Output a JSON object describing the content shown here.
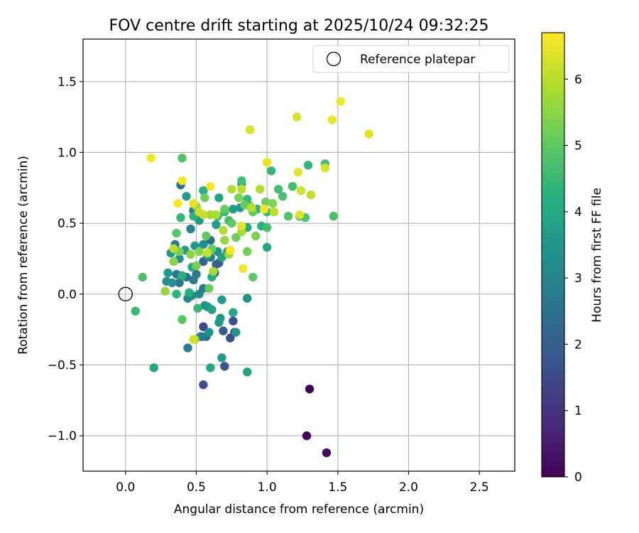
{
  "chart_data": {
    "type": "scatter",
    "title": "FOV centre drift starting at 2025/10/24 09:32:25",
    "xlabel": "Angular distance from reference (arcmin)",
    "ylabel": "Rotation from reference (arcmin)",
    "xlim": [
      -0.3,
      2.75
    ],
    "ylim": [
      -1.25,
      1.8
    ],
    "xticks": [
      0.0,
      0.5,
      1.0,
      1.5,
      2.0,
      2.5
    ],
    "xtick_labels": [
      "0.0",
      "0.5",
      "1.0",
      "1.5",
      "2.0",
      "2.5"
    ],
    "yticks": [
      -1.0,
      -0.5,
      0.0,
      0.5,
      1.0,
      1.5
    ],
    "ytick_labels": [
      "−1.0",
      "−0.5",
      "0.0",
      "0.5",
      "1.0",
      "1.5"
    ],
    "grid": true,
    "legend": {
      "position": "top-right",
      "entries": [
        "Reference platepar"
      ]
    },
    "colorbar": {
      "label": "Hours from first FF file",
      "colormap": "viridis",
      "range": [
        0,
        6.7
      ],
      "ticks": [
        0,
        1,
        2,
        3,
        4,
        5,
        6
      ],
      "tick_labels": [
        "0",
        "1",
        "2",
        "3",
        "4",
        "5",
        "6"
      ]
    },
    "reference_point": {
      "x": 0.0,
      "y": 0.0,
      "label": "Reference platepar"
    },
    "points": [
      {
        "x": 1.28,
        "y": -1.0,
        "h": 0.1
      },
      {
        "x": 1.3,
        "y": -0.67,
        "h": 0.1
      },
      {
        "x": 1.42,
        "y": -1.12,
        "h": 0.15
      },
      {
        "x": 0.55,
        "y": -0.64,
        "h": 1.6
      },
      {
        "x": 0.7,
        "y": -0.51,
        "h": 1.8
      },
      {
        "x": 0.74,
        "y": -0.31,
        "h": 1.6
      },
      {
        "x": 0.77,
        "y": -0.27,
        "h": 1.5
      },
      {
        "x": 0.76,
        "y": -0.19,
        "h": 1.7
      },
      {
        "x": 0.55,
        "y": -0.23,
        "h": 1.5
      },
      {
        "x": 0.57,
        "y": -0.3,
        "h": 2.2
      },
      {
        "x": 0.54,
        "y": -0.3,
        "h": 2.6
      },
      {
        "x": 0.69,
        "y": -0.26,
        "h": 1.9
      },
      {
        "x": 0.6,
        "y": 0.38,
        "h": 2.4
      },
      {
        "x": 0.63,
        "y": 0.15,
        "h": 2.3
      },
      {
        "x": 0.64,
        "y": 0.21,
        "h": 2.2
      },
      {
        "x": 0.66,
        "y": 0.22,
        "h": 2.1
      },
      {
        "x": 0.6,
        "y": 0.26,
        "h": 2.4
      },
      {
        "x": 0.55,
        "y": 0.23,
        "h": 2.2
      },
      {
        "x": 0.5,
        "y": 0.14,
        "h": 2.6
      },
      {
        "x": 0.48,
        "y": 0.1,
        "h": 2.8
      },
      {
        "x": 0.43,
        "y": 0.12,
        "h": 2.5
      },
      {
        "x": 0.36,
        "y": 0.14,
        "h": 2.7
      },
      {
        "x": 0.38,
        "y": 0.08,
        "h": 2.6
      },
      {
        "x": 0.35,
        "y": 0.35,
        "h": 2.8
      },
      {
        "x": 0.39,
        "y": 0.77,
        "h": 2.5
      },
      {
        "x": 0.48,
        "y": 0.59,
        "h": 2.7
      },
      {
        "x": 0.46,
        "y": 0.46,
        "h": 2.9
      },
      {
        "x": 0.52,
        "y": 0.0,
        "h": 3.1
      },
      {
        "x": 0.55,
        "y": 0.04,
        "h": 2.7
      },
      {
        "x": 0.53,
        "y": -0.3,
        "h": 2.9
      },
      {
        "x": 0.44,
        "y": -0.38,
        "h": 2.8
      },
      {
        "x": 0.44,
        "y": -0.03,
        "h": 3.0
      },
      {
        "x": 0.47,
        "y": -0.01,
        "h": 3.2
      },
      {
        "x": 0.56,
        "y": -0.08,
        "h": 3.3
      },
      {
        "x": 0.58,
        "y": -0.09,
        "h": 3.4
      },
      {
        "x": 0.59,
        "y": -0.27,
        "h": 3.4
      },
      {
        "x": 0.67,
        "y": -0.17,
        "h": 3.5
      },
      {
        "x": 0.66,
        "y": -0.2,
        "h": 3.6
      },
      {
        "x": 0.78,
        "y": -0.27,
        "h": 3.5
      },
      {
        "x": 0.76,
        "y": -0.13,
        "h": 3.9
      },
      {
        "x": 0.68,
        "y": -0.45,
        "h": 3.7
      },
      {
        "x": 0.6,
        "y": -0.52,
        "h": 3.9
      },
      {
        "x": 0.86,
        "y": -0.55,
        "h": 3.8
      },
      {
        "x": 0.86,
        "y": -0.03,
        "h": 3.4
      },
      {
        "x": 0.68,
        "y": -0.04,
        "h": 3.6
      },
      {
        "x": 0.61,
        "y": -0.11,
        "h": 3.8
      },
      {
        "x": 0.32,
        "y": 0.29,
        "h": 3.6
      },
      {
        "x": 0.3,
        "y": 0.15,
        "h": 3.5
      },
      {
        "x": 0.29,
        "y": 0.09,
        "h": 3.3
      },
      {
        "x": 0.33,
        "y": 0.08,
        "h": 3.5
      },
      {
        "x": 0.38,
        "y": 0.25,
        "h": 3.4
      },
      {
        "x": 0.42,
        "y": 0.31,
        "h": 3.6
      },
      {
        "x": 0.49,
        "y": 0.34,
        "h": 3.5
      },
      {
        "x": 0.55,
        "y": 0.35,
        "h": 3.3
      },
      {
        "x": 0.58,
        "y": 0.27,
        "h": 3.6
      },
      {
        "x": 0.65,
        "y": 0.3,
        "h": 3.4
      },
      {
        "x": 0.68,
        "y": 0.26,
        "h": 3.8
      },
      {
        "x": 0.72,
        "y": 0.3,
        "h": 3.7
      },
      {
        "x": 0.66,
        "y": 0.68,
        "h": 3.9
      },
      {
        "x": 0.43,
        "y": 0.69,
        "h": 3.6
      },
      {
        "x": 0.52,
        "y": 0.52,
        "h": 3.6
      },
      {
        "x": 0.64,
        "y": 0.49,
        "h": 3.7
      },
      {
        "x": 0.82,
        "y": 0.78,
        "h": 3.8
      },
      {
        "x": 0.81,
        "y": 0.61,
        "h": 3.5
      },
      {
        "x": 0.76,
        "y": 0.6,
        "h": 3.6
      },
      {
        "x": 1.0,
        "y": 0.33,
        "h": 3.9
      },
      {
        "x": 0.86,
        "y": 0.47,
        "h": 4.0
      },
      {
        "x": 0.96,
        "y": 0.48,
        "h": 4.2
      },
      {
        "x": 0.61,
        "y": 0.12,
        "h": 4.1
      },
      {
        "x": 0.47,
        "y": 0.19,
        "h": 4.0
      },
      {
        "x": 0.45,
        "y": 0.01,
        "h": 4.1
      },
      {
        "x": 0.36,
        "y": 0.0,
        "h": 4.3
      },
      {
        "x": 0.51,
        "y": -0.1,
        "h": 4.4
      },
      {
        "x": 0.4,
        "y": 0.13,
        "h": 4.2
      },
      {
        "x": 0.39,
        "y": 0.54,
        "h": 4.4
      },
      {
        "x": 0.48,
        "y": 0.55,
        "h": 4.3
      },
      {
        "x": 0.55,
        "y": 0.73,
        "h": 4.2
      },
      {
        "x": 0.65,
        "y": 0.55,
        "h": 4.5
      },
      {
        "x": 0.7,
        "y": 0.58,
        "h": 4.4
      },
      {
        "x": 0.73,
        "y": 0.52,
        "h": 4.6
      },
      {
        "x": 0.82,
        "y": 0.8,
        "h": 4.7
      },
      {
        "x": 0.86,
        "y": 0.67,
        "h": 4.4
      },
      {
        "x": 0.88,
        "y": 0.62,
        "h": 4.5
      },
      {
        "x": 0.93,
        "y": 0.6,
        "h": 4.3
      },
      {
        "x": 1.0,
        "y": 0.58,
        "h": 4.5
      },
      {
        "x": 1.0,
        "y": 0.47,
        "h": 4.6
      },
      {
        "x": 1.03,
        "y": 0.87,
        "h": 4.4
      },
      {
        "x": 1.08,
        "y": 0.74,
        "h": 4.6
      },
      {
        "x": 1.11,
        "y": 0.69,
        "h": 4.7
      },
      {
        "x": 1.15,
        "y": 0.55,
        "h": 4.8
      },
      {
        "x": 1.18,
        "y": 0.76,
        "h": 4.6
      },
      {
        "x": 1.23,
        "y": 0.55,
        "h": 4.4
      },
      {
        "x": 1.27,
        "y": 0.54,
        "h": 4.8
      },
      {
        "x": 1.29,
        "y": 0.91,
        "h": 4.4
      },
      {
        "x": 1.41,
        "y": 0.92,
        "h": 4.6
      },
      {
        "x": 1.47,
        "y": 0.55,
        "h": 4.7
      },
      {
        "x": 0.4,
        "y": 0.96,
        "h": 4.8
      },
      {
        "x": 0.12,
        "y": 0.12,
        "h": 4.7
      },
      {
        "x": 0.07,
        "y": -0.12,
        "h": 4.5
      },
      {
        "x": 0.2,
        "y": -0.52,
        "h": 4.0
      },
      {
        "x": 0.4,
        "y": -0.18,
        "h": 4.9
      },
      {
        "x": 0.36,
        "y": 0.43,
        "h": 4.9
      },
      {
        "x": 0.57,
        "y": 0.41,
        "h": 5.0
      },
      {
        "x": 0.61,
        "y": 0.32,
        "h": 5.1
      },
      {
        "x": 0.56,
        "y": 0.68,
        "h": 5.2
      },
      {
        "x": 0.7,
        "y": 0.6,
        "h": 5.1
      },
      {
        "x": 0.78,
        "y": 0.4,
        "h": 5.2
      },
      {
        "x": 0.75,
        "y": 0.5,
        "h": 5.0
      },
      {
        "x": 0.8,
        "y": 0.68,
        "h": 5.3
      },
      {
        "x": 0.84,
        "y": 0.63,
        "h": 5.1
      },
      {
        "x": 0.86,
        "y": 0.3,
        "h": 5.2
      },
      {
        "x": 0.9,
        "y": 0.12,
        "h": 5.0
      },
      {
        "x": 0.9,
        "y": 0.58,
        "h": 5.1
      },
      {
        "x": 0.92,
        "y": 0.41,
        "h": 5.3
      },
      {
        "x": 0.99,
        "y": 0.65,
        "h": 5.2
      },
      {
        "x": 1.04,
        "y": 0.64,
        "h": 5.4
      },
      {
        "x": 0.59,
        "y": 0.04,
        "h": 5.1
      },
      {
        "x": 0.5,
        "y": 0.2,
        "h": 5.3
      },
      {
        "x": 0.52,
        "y": 0.3,
        "h": 5.4
      },
      {
        "x": 0.46,
        "y": 0.28,
        "h": 5.5
      },
      {
        "x": 0.38,
        "y": 0.3,
        "h": 5.2
      },
      {
        "x": 0.28,
        "y": 0.02,
        "h": 5.6
      },
      {
        "x": 0.34,
        "y": 0.23,
        "h": 5.5
      },
      {
        "x": 0.49,
        "y": -0.32,
        "h": 5.7
      },
      {
        "x": 0.62,
        "y": 0.16,
        "h": 5.8
      },
      {
        "x": 0.5,
        "y": 0.62,
        "h": 5.6
      },
      {
        "x": 0.6,
        "y": 0.56,
        "h": 5.7
      },
      {
        "x": 0.64,
        "y": 0.56,
        "h": 5.8
      },
      {
        "x": 0.69,
        "y": 0.45,
        "h": 5.9
      },
      {
        "x": 0.7,
        "y": 0.38,
        "h": 5.6
      },
      {
        "x": 0.73,
        "y": 0.28,
        "h": 5.7
      },
      {
        "x": 0.75,
        "y": 0.74,
        "h": 5.9
      },
      {
        "x": 0.82,
        "y": 0.74,
        "h": 6.0
      },
      {
        "x": 0.82,
        "y": 0.44,
        "h": 5.8
      },
      {
        "x": 0.89,
        "y": 0.61,
        "h": 6.0
      },
      {
        "x": 0.95,
        "y": 0.74,
        "h": 5.9
      },
      {
        "x": 1.05,
        "y": 0.58,
        "h": 6.0
      },
      {
        "x": 0.55,
        "y": 0.56,
        "h": 6.1
      },
      {
        "x": 0.52,
        "y": 0.58,
        "h": 6.2
      },
      {
        "x": 0.58,
        "y": 0.29,
        "h": 6.1
      },
      {
        "x": 0.34,
        "y": 0.32,
        "h": 6.0
      },
      {
        "x": 0.48,
        "y": -0.32,
        "h": 6.2
      },
      {
        "x": 0.4,
        "y": 0.8,
        "h": 6.6
      },
      {
        "x": 0.37,
        "y": 0.64,
        "h": 6.7
      },
      {
        "x": 0.48,
        "y": 0.64,
        "h": 6.5
      },
      {
        "x": 0.6,
        "y": 0.76,
        "h": 6.6
      },
      {
        "x": 0.74,
        "y": 0.31,
        "h": 6.7
      },
      {
        "x": 0.83,
        "y": 0.18,
        "h": 6.6
      },
      {
        "x": 0.82,
        "y": 0.48,
        "h": 6.4
      },
      {
        "x": 0.88,
        "y": 1.16,
        "h": 6.3
      },
      {
        "x": 1.0,
        "y": 0.93,
        "h": 6.5
      },
      {
        "x": 0.98,
        "y": 0.6,
        "h": 6.6
      },
      {
        "x": 1.22,
        "y": 0.86,
        "h": 6.4
      },
      {
        "x": 1.21,
        "y": 1.25,
        "h": 6.3
      },
      {
        "x": 1.24,
        "y": 0.73,
        "h": 6.2
      },
      {
        "x": 1.31,
        "y": 0.7,
        "h": 6.1
      },
      {
        "x": 1.23,
        "y": 0.56,
        "h": 6.4
      },
      {
        "x": 1.41,
        "y": 0.89,
        "h": 6.3
      },
      {
        "x": 1.46,
        "y": 1.23,
        "h": 6.5
      },
      {
        "x": 1.52,
        "y": 1.36,
        "h": 6.6
      },
      {
        "x": 1.72,
        "y": 1.13,
        "h": 6.4
      },
      {
        "x": 0.18,
        "y": 0.96,
        "h": 6.6
      }
    ]
  }
}
